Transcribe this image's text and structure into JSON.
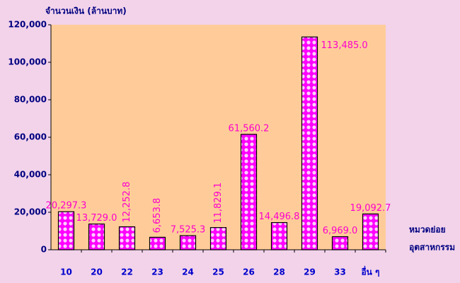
{
  "chart_data": {
    "type": "bar",
    "y_label": "จำนวนเงิน (ล้านบาท)",
    "x_label": [
      "หมวดย่อย",
      "อุตสาหกรรม"
    ],
    "categories": [
      "10",
      "20",
      "22",
      "23",
      "24",
      "25",
      "26",
      "28",
      "29",
      "33",
      "อื่น ๆ"
    ],
    "values": [
      20297.3,
      13729.0,
      12252.8,
      6653.8,
      7525.3,
      11829.1,
      61560.2,
      14496.8,
      113485.0,
      6969.0,
      19092.7
    ],
    "value_labels": [
      "20,297.3",
      "13,729.0",
      "12,252.8",
      "6,653.8",
      "7,525.3",
      "11,829.1",
      "61,560.2",
      "14,496.8",
      "113,485.0",
      "6,969.0",
      "19,092.7"
    ],
    "color": "#ff00ff",
    "ylim": [
      0,
      120000
    ],
    "yticks": [
      0,
      {
        "value": 20000,
        "label": "20,000"
      },
      {
        "value": 40000,
        "label": "40,000"
      },
      {
        "value": 60000,
        "label": "60,000"
      },
      {
        "value": 80000,
        "label": "80,000"
      },
      {
        "value": 100000,
        "label": "100,000"
      },
      {
        "value": 120000,
        "label": "120,000"
      }
    ]
  }
}
